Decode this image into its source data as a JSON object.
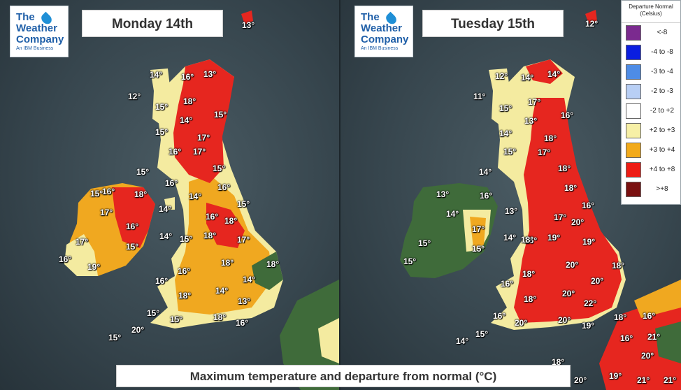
{
  "colors": {
    "sea": "#3b4a52",
    "land_normal": "#3f6b3a",
    "above_2_3": "#f4eba0",
    "above_3_4": "#f0a820",
    "above_4_8": "#e6261f"
  },
  "logo": {
    "line1": "The",
    "line2": "Weather",
    "line3": "Company",
    "line4": "An IBM Business"
  },
  "monday": {
    "title": "Monday 14th",
    "labels": [
      "13°",
      "14°",
      "16°",
      "13°",
      "12°",
      "15°",
      "18°",
      "15°",
      "14°",
      "15°",
      "17°",
      "16°",
      "17°",
      "15°",
      "16°",
      "16°",
      "15°",
      "14°",
      "18°",
      "16°",
      "15°",
      "17°",
      "16°",
      "14°",
      "15°",
      "14°",
      "16°",
      "18°",
      "17°",
      "15°",
      "15°",
      "18°",
      "17°",
      "16°",
      "16°",
      "19°",
      "18°",
      "18°",
      "16°",
      "14°",
      "18°",
      "14°",
      "13°",
      "15°",
      "15°",
      "18°",
      "16°",
      "20°",
      "15°"
    ]
  },
  "tuesday": {
    "title": "Tuesday 15th",
    "labels": [
      "12°",
      "12°",
      "14°",
      "11°",
      "14°",
      "15°",
      "17°",
      "13°",
      "16°",
      "14°",
      "18°",
      "17°",
      "15°",
      "14°",
      "18°",
      "18°",
      "13°",
      "16°",
      "16°",
      "14°",
      "13°",
      "17°",
      "20°",
      "17°",
      "16°",
      "19°",
      "14°",
      "15°",
      "18°",
      "19°",
      "15°",
      "15°",
      "20°",
      "18°",
      "18°",
      "20°",
      "16°",
      "20°",
      "22°",
      "18°",
      "16°",
      "20°",
      "20°",
      "19°",
      "18°",
      "16°",
      "14°",
      "15°",
      "21°",
      "16°",
      "20°",
      "18°",
      "21°",
      "19°",
      "20°",
      "21°"
    ]
  },
  "legend": {
    "title": "Departure Normal (Celsius)",
    "items": [
      {
        "label": "<-8",
        "color": "#7b2a8f"
      },
      {
        "label": "-4 to -8",
        "color": "#0a1ee0"
      },
      {
        "label": "-3 to -4",
        "color": "#4e8ce6"
      },
      {
        "label": "-2 to -3",
        "color": "#b8cff5"
      },
      {
        "label": "-2 to +2",
        "color": "#ffffff"
      },
      {
        "label": "+2 to +3",
        "color": "#f7f0a6"
      },
      {
        "label": "+3 to +4",
        "color": "#f2aa1a"
      },
      {
        "label": "+4 to +8",
        "color": "#ee1c14"
      },
      {
        "label": ">+8",
        "color": "#7a1010"
      }
    ]
  },
  "caption": "Maximum temperature and departure from normal (°C)"
}
